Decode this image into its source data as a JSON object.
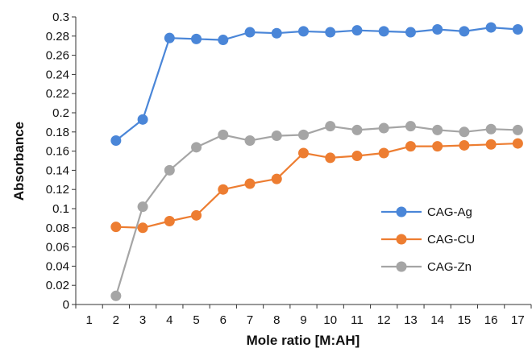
{
  "chart_data": {
    "type": "line",
    "title": "",
    "xlabel": "Mole ratio [M:AH]",
    "ylabel": "Absorbance",
    "x_ticks": [
      1,
      2,
      3,
      4,
      5,
      6,
      7,
      8,
      9,
      10,
      11,
      12,
      13,
      14,
      15,
      16,
      17
    ],
    "y_ticks": [
      "0",
      "0.02",
      "0.04",
      "0.06",
      "0.08",
      "0.1",
      "0.12",
      "0.14",
      "0.16",
      "0.18",
      "0.2",
      "0.22",
      "0.24",
      "0.26",
      "0.28",
      "0.3"
    ],
    "xlim": [
      0.5,
      17.5
    ],
    "ylim": [
      0,
      0.3
    ],
    "grid": false,
    "legend_position": "right",
    "series": [
      {
        "name": "CAG-Ag",
        "color": "#4a86d8",
        "x": [
          2,
          3,
          4,
          5,
          6,
          7,
          8,
          9,
          10,
          11,
          12,
          13,
          14,
          15,
          16,
          17
        ],
        "values": [
          0.171,
          0.193,
          0.278,
          0.277,
          0.276,
          0.284,
          0.283,
          0.285,
          0.284,
          0.286,
          0.285,
          0.284,
          0.287,
          0.285,
          0.289,
          0.287
        ]
      },
      {
        "name": "CAG-CU",
        "color": "#ed7d31",
        "x": [
          2,
          3,
          4,
          5,
          6,
          7,
          8,
          9,
          10,
          11,
          12,
          13,
          14,
          15,
          16,
          17
        ],
        "values": [
          0.081,
          0.08,
          0.087,
          0.093,
          0.12,
          0.126,
          0.131,
          0.158,
          0.153,
          0.155,
          0.158,
          0.165,
          0.165,
          0.166,
          0.167,
          0.168
        ]
      },
      {
        "name": "CAG-Zn",
        "color": "#a5a5a5",
        "x": [
          2,
          3,
          4,
          5,
          6,
          7,
          8,
          9,
          10,
          11,
          12,
          13,
          14,
          15,
          16,
          17
        ],
        "values": [
          0.009,
          0.102,
          0.14,
          0.164,
          0.177,
          0.171,
          0.176,
          0.177,
          0.186,
          0.182,
          0.184,
          0.186,
          0.182,
          0.18,
          0.183,
          0.182
        ]
      }
    ]
  }
}
